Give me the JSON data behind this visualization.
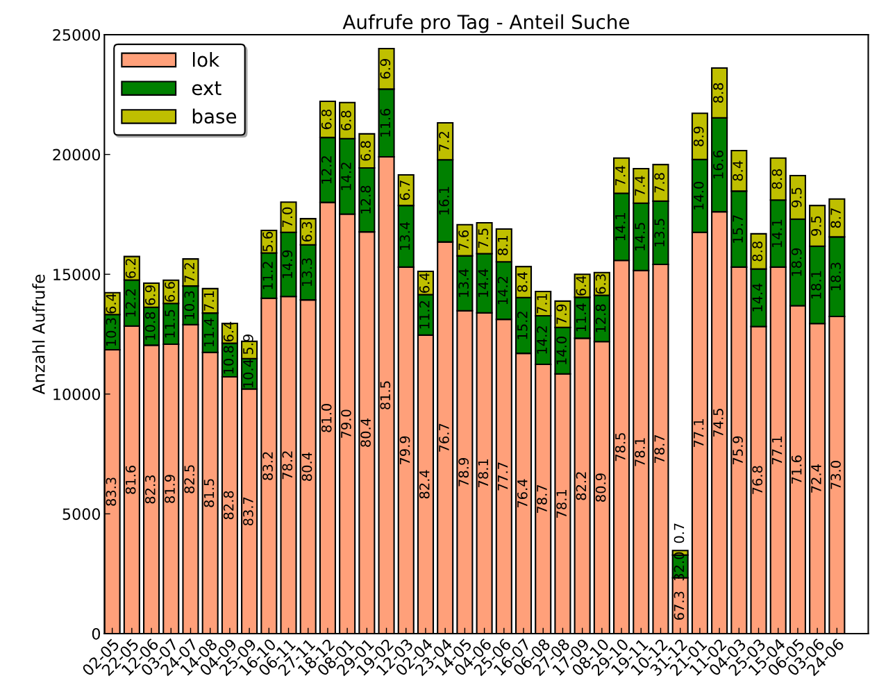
{
  "chart_data": {
    "type": "bar",
    "stacked": true,
    "title": "Aufrufe pro Tag - Anteil Suche",
    "ylabel": "Anzahl Aufrufe",
    "categories": [
      "02-05",
      "22-05",
      "12-06",
      "03-07",
      "24-07",
      "14-08",
      "04-09",
      "25-09",
      "16-10",
      "06-11",
      "27-11",
      "18-12",
      "08-01",
      "29-01",
      "19-02",
      "12-03",
      "02-04",
      "23-04",
      "14-05",
      "04-06",
      "25-06",
      "16-07",
      "06-08",
      "27-08",
      "17-09",
      "08-10",
      "29-10",
      "19-11",
      "10-12",
      "31-12",
      "21-01",
      "11-02",
      "04-03",
      "25-03",
      "15-04",
      "06-05",
      "03-06",
      "24-06"
    ],
    "series": [
      {
        "name": "lok",
        "color": "#ffa07a",
        "values": [
          11850,
          12840,
          12040,
          12080,
          12900,
          11740,
          10720,
          10210,
          14000,
          14070,
          13930,
          18000,
          17510,
          16770,
          19900,
          15300,
          12460,
          16350,
          13480,
          13390,
          13120,
          11700,
          11240,
          10840,
          12330,
          12190,
          15580,
          15160,
          15410,
          2330,
          16750,
          17610,
          15300,
          12820,
          15300,
          13690,
          12940,
          13240
        ]
      },
      {
        "name": "ext",
        "color": "#008000",
        "values": [
          1470,
          1920,
          1580,
          1700,
          1610,
          1640,
          1400,
          1270,
          1890,
          2680,
          2300,
          2710,
          3150,
          2670,
          2830,
          2570,
          1690,
          3430,
          2290,
          2470,
          2400,
          2330,
          2030,
          1940,
          1710,
          1930,
          2800,
          2810,
          2640,
          950,
          3040,
          3920,
          3170,
          2400,
          2800,
          3610,
          3230,
          3320
        ]
      },
      {
        "name": "base",
        "color": "#bfbf00",
        "values": [
          910,
          980,
          1010,
          970,
          1130,
          1020,
          830,
          720,
          940,
          1260,
          1090,
          1510,
          1510,
          1420,
          1690,
          1280,
          970,
          1540,
          1300,
          1290,
          1370,
          1290,
          1010,
          1100,
          960,
          950,
          1470,
          1440,
          1530,
          190,
          1930,
          2080,
          1690,
          1470,
          1750,
          1820,
          1700,
          1580
        ]
      }
    ],
    "annotations": [
      "83.3",
      "81.6",
      "82.3",
      "81.9",
      "82.5",
      "81.5",
      "82.8",
      "83.7",
      "83.2",
      "78.2",
      "80.4",
      "81.0",
      "79.0",
      "80.4",
      "81.5",
      "79.9",
      "82.4",
      "76.7",
      "78.9",
      "78.1",
      "77.7",
      "76.4",
      "78.7",
      "78.1",
      "82.2",
      "80.9",
      "78.5",
      "78.1",
      "78.7",
      "67.3",
      "77.1",
      "74.5",
      "75.9",
      "76.8",
      "77.1",
      "71.6",
      "72.4",
      "73.0",
      "10.3",
      "12.2",
      "10.8",
      "11.5",
      "10.3",
      "11.4",
      "10.8",
      "10.4",
      "11.2",
      "14.9",
      "13.3",
      "12.2",
      "14.2",
      "12.8",
      "11.6",
      "13.4",
      "11.2",
      "16.1",
      "13.4",
      "14.4",
      "14.2",
      "15.2",
      "14.2",
      "14.0",
      "11.4",
      "12.8",
      "14.1",
      "14.5",
      "13.5",
      "32.0",
      "14.0",
      "16.6",
      "15.7",
      "14.4",
      "14.1",
      "18.9",
      "18.1",
      "18.3",
      "6.4",
      "6.2",
      "6.9",
      "6.6",
      "7.2",
      "7.1",
      "6.4",
      "5.9",
      "5.6",
      "7.0",
      "6.3",
      "6.8",
      "6.8",
      "6.8",
      "6.9",
      "6.7",
      "6.4",
      "7.2",
      "7.6",
      "7.5",
      "8.1",
      "8.4",
      "7.1",
      "7.9",
      "6.4",
      "6.3",
      "7.4",
      "7.4",
      "7.8",
      "0.7",
      "8.9",
      "8.8",
      "8.4",
      "8.8",
      "8.8",
      "9.5",
      "9.5",
      "8.7"
    ],
    "ylim": [
      0,
      25000
    ],
    "yticks": [
      0,
      5000,
      10000,
      15000,
      20000,
      25000
    ],
    "grid": false,
    "legend": "top left"
  }
}
